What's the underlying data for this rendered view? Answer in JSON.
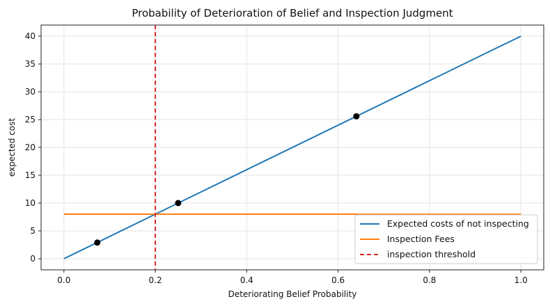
{
  "chart_data": {
    "type": "line",
    "title": "Probability of Deterioration of Belief and Inspection Judgment",
    "xlabel": "Deteriorating Belief Probability",
    "ylabel": "expected cost",
    "xlim": [
      -0.05,
      1.05
    ],
    "ylim": [
      -2,
      42
    ],
    "x_ticks": [
      0.0,
      0.2,
      0.4,
      0.6,
      0.8,
      1.0
    ],
    "x_tick_labels": [
      "0.0",
      "0.2",
      "0.4",
      "0.6",
      "0.8",
      "1.0"
    ],
    "y_ticks": [
      0,
      5,
      10,
      15,
      20,
      25,
      30,
      35,
      40
    ],
    "y_tick_labels": [
      "0",
      "5",
      "10",
      "15",
      "20",
      "25",
      "30",
      "35",
      "40"
    ],
    "grid": true,
    "legend_position": "bottom-right",
    "series": [
      {
        "name": "Expected costs of not inspecting",
        "color": "#1f77b4",
        "style": "solid",
        "x": [
          0.0,
          1.0
        ],
        "y": [
          0,
          40
        ]
      },
      {
        "name": "Inspection Fees",
        "color": "#ff7f0e",
        "style": "solid",
        "x": [
          0.0,
          1.0
        ],
        "y": [
          8,
          8
        ]
      },
      {
        "name": "inspection threshold",
        "color": "#d62728",
        "style": "dashed",
        "vline_x": 0.2
      }
    ],
    "points": {
      "color": "#000000",
      "x": [
        0.073,
        0.25,
        0.64
      ],
      "y": [
        2.9,
        10.0,
        25.6
      ]
    }
  }
}
